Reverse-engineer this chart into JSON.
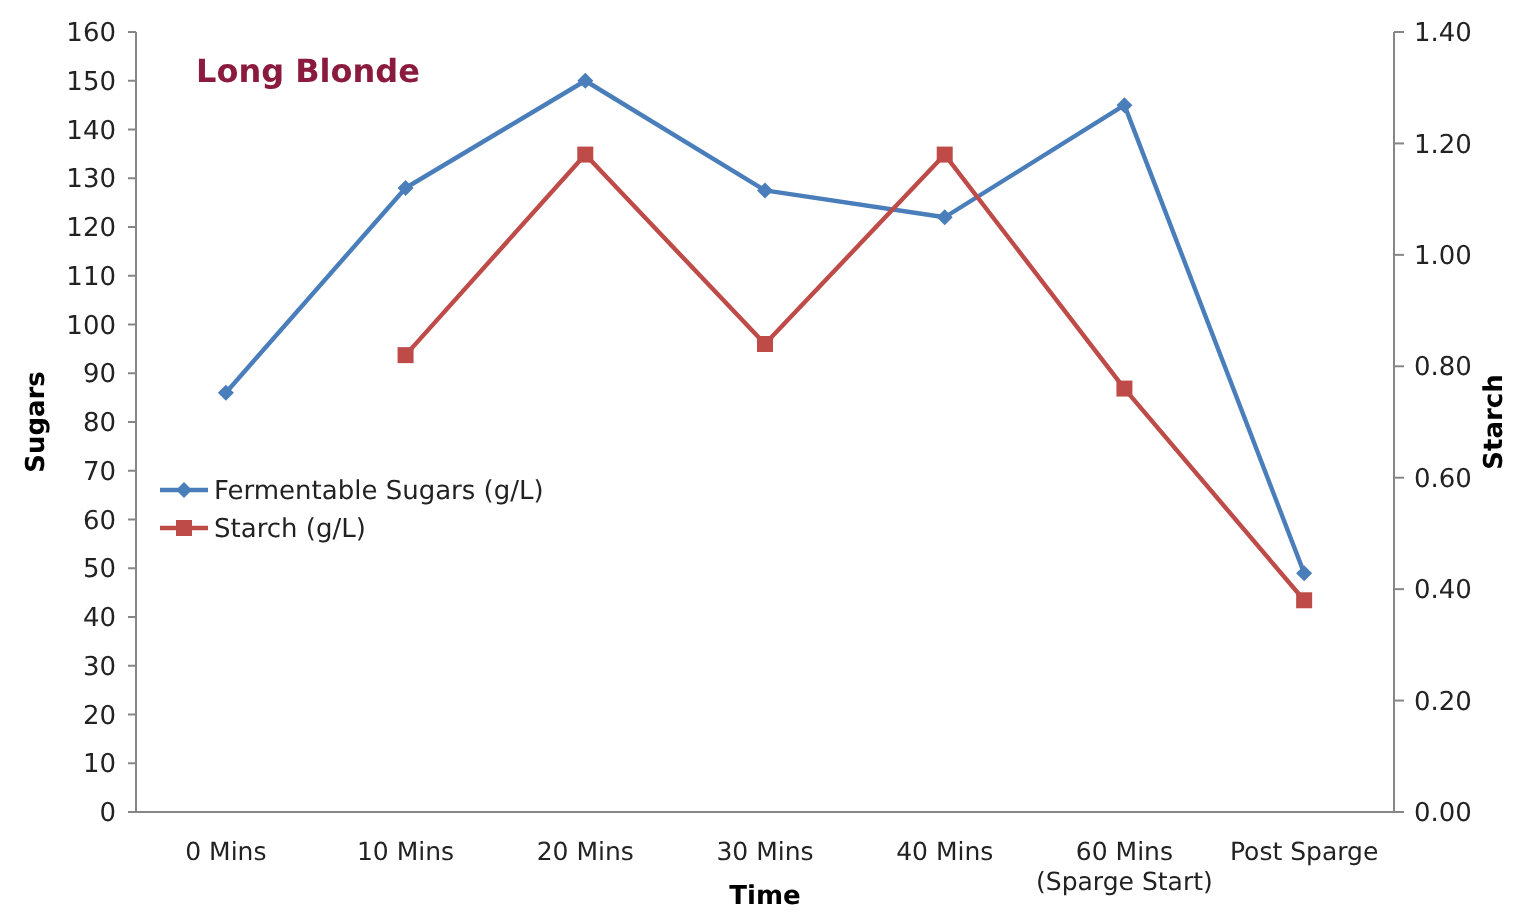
{
  "chart_data": {
    "type": "line",
    "title": "Long Blonde",
    "xlabel": "Time",
    "ylabel": "Sugars",
    "y2label": "Starch",
    "categories": [
      "0 Mins",
      "10 Mins",
      "20 Mins",
      "30 Mins",
      "40 Mins",
      "60 Mins\n(Sparge Start)",
      "Post Sparge"
    ],
    "series": [
      {
        "name": "Fermentable Sugars (g/L)",
        "color": "#4a7ebb",
        "marker": "diamond",
        "values": [
          86,
          128,
          150,
          127.5,
          122,
          145,
          49
        ]
      },
      {
        "name": "Starch (g/L)",
        "color": "#be4b48",
        "marker": "square",
        "axis": "y2",
        "values": [
          null,
          0.82,
          1.18,
          0.84,
          1.18,
          0.76,
          0.38
        ]
      }
    ],
    "ylim": [
      0,
      160
    ],
    "yticks": [
      0,
      10,
      20,
      30,
      40,
      50,
      60,
      70,
      80,
      90,
      100,
      110,
      120,
      130,
      140,
      150,
      160
    ],
    "y2lim": [
      0,
      1.4
    ],
    "y2ticks": [
      {
        "value": 0,
        "label": "0.00"
      },
      {
        "value": 0.2,
        "label": "0.20"
      },
      {
        "value": 0.4,
        "label": "0.40"
      },
      {
        "value": 0.6,
        "label": "0.60"
      },
      {
        "value": 0.8,
        "label": "0.80"
      },
      {
        "value": 1,
        "label": "1.00"
      },
      {
        "value": 1.2,
        "label": "1.20"
      },
      {
        "value": 1.4,
        "label": "1.40"
      }
    ],
    "legend": "left",
    "grid": false,
    "line_style": "solid"
  }
}
